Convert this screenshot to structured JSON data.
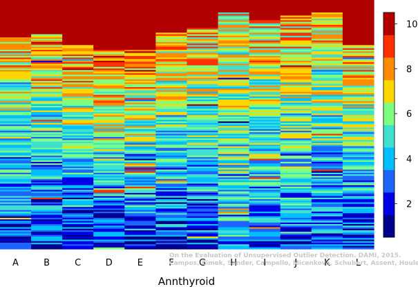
{
  "chart_data": {
    "type": "heatmap",
    "xlabel": "Annthyroid",
    "columns": [
      "A",
      "B",
      "C",
      "D",
      "E",
      "F",
      "G",
      "H",
      "I",
      "J",
      "K",
      "L"
    ],
    "colorbar": {
      "min": 0.5,
      "max": 10.5,
      "ticks": [
        2,
        4,
        6,
        8,
        10
      ],
      "colors": [
        "#00008B",
        "#0000E6",
        "#1E64FF",
        "#00BFFF",
        "#40E0D0",
        "#7FFF7F",
        "#FFD700",
        "#FF8C00",
        "#FF3000",
        "#B00000"
      ]
    },
    "column_profiles": [
      {
        "column": "A",
        "top_dark_fraction": 0.15,
        "mean_level_top": 7.5,
        "mean_level_bottom": 2.0
      },
      {
        "column": "B",
        "top_dark_fraction": 0.14,
        "mean_level_top": 7.5,
        "mean_level_bottom": 2.0
      },
      {
        "column": "C",
        "top_dark_fraction": 0.18,
        "mean_level_top": 8.0,
        "mean_level_bottom": 1.8
      },
      {
        "column": "D",
        "top_dark_fraction": 0.2,
        "mean_level_top": 8.5,
        "mean_level_bottom": 2.0
      },
      {
        "column": "E",
        "top_dark_fraction": 0.2,
        "mean_level_top": 8.5,
        "mean_level_bottom": 2.0
      },
      {
        "column": "F",
        "top_dark_fraction": 0.13,
        "mean_level_top": 8.0,
        "mean_level_bottom": 2.0
      },
      {
        "column": "G",
        "top_dark_fraction": 0.11,
        "mean_level_top": 7.5,
        "mean_level_bottom": 2.2
      },
      {
        "column": "H",
        "top_dark_fraction": 0.05,
        "mean_level_top": 7.0,
        "mean_level_bottom": 4.0
      },
      {
        "column": "I",
        "top_dark_fraction": 0.08,
        "mean_level_top": 7.5,
        "mean_level_bottom": 2.5
      },
      {
        "column": "J",
        "top_dark_fraction": 0.06,
        "mean_level_top": 7.5,
        "mean_level_bottom": 3.0
      },
      {
        "column": "K",
        "top_dark_fraction": 0.05,
        "mean_level_top": 7.5,
        "mean_level_bottom": 2.5
      },
      {
        "column": "L",
        "top_dark_fraction": 0.18,
        "mean_level_top": 7.5,
        "mean_level_bottom": 2.0
      }
    ]
  },
  "watermark": {
    "line1": "On the Evaluation of Unsupervised Outlier Detection. DAMI, 2015.",
    "line2": "Campos, Zimek, Sander, Campello, Micenková, Schubert, Assent, Houle"
  }
}
